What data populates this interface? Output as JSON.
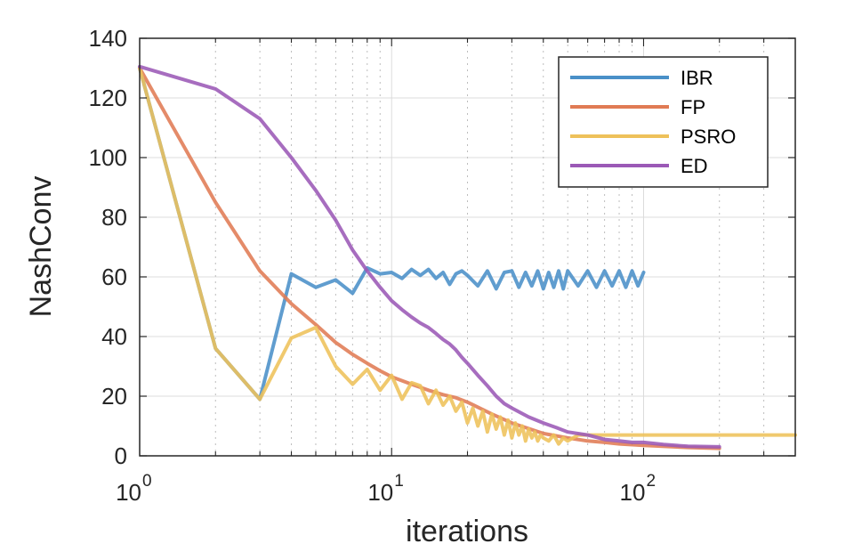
{
  "chart_data": {
    "type": "line",
    "title": "",
    "xlabel": "iterations",
    "ylabel": "NashConv",
    "xscale": "log",
    "xlim": [
      1,
      400
    ],
    "ylim": [
      0,
      140
    ],
    "grid": true,
    "legend_position": "top-right",
    "x_ticks": [
      {
        "value": 1,
        "base": "10",
        "exp": "0"
      },
      {
        "value": 10,
        "base": "10",
        "exp": "1"
      },
      {
        "value": 100,
        "base": "10",
        "exp": "2"
      }
    ],
    "y_ticks": [
      {
        "value": 0,
        "label": "0"
      },
      {
        "value": 20,
        "label": "20"
      },
      {
        "value": 40,
        "label": "40"
      },
      {
        "value": 60,
        "label": "60"
      },
      {
        "value": 80,
        "label": "80"
      },
      {
        "value": 100,
        "label": "100"
      },
      {
        "value": 120,
        "label": "120"
      },
      {
        "value": 140,
        "label": "140"
      }
    ],
    "series": [
      {
        "name": "IBR",
        "color": "#4a90c8",
        "x": [
          1,
          2,
          3,
          4,
          5,
          6,
          7,
          8,
          9,
          10,
          11,
          12,
          13,
          14,
          15,
          16,
          17,
          18,
          19,
          20,
          22,
          24,
          26,
          28,
          30,
          32,
          34,
          36,
          38,
          40,
          42,
          44,
          46,
          48,
          50,
          55,
          60,
          65,
          70,
          75,
          80,
          85,
          90,
          95,
          100
        ],
        "y": [
          130,
          36,
          19,
          61,
          56.5,
          59,
          54.5,
          63,
          61,
          61.5,
          59.5,
          62.5,
          60.5,
          62.5,
          59.5,
          61.5,
          57.5,
          61,
          62,
          60.5,
          57,
          62,
          56,
          61.5,
          62,
          56.5,
          61.5,
          57,
          62,
          56,
          61.5,
          56.5,
          62,
          56,
          62,
          57,
          62,
          56.5,
          62,
          57,
          62,
          56.5,
          62,
          57,
          61.5
        ]
      },
      {
        "name": "FP",
        "color": "#e07b54",
        "x": [
          1,
          2,
          3,
          4,
          5,
          6,
          7,
          8,
          9,
          10,
          12,
          14,
          16,
          18,
          20,
          25,
          30,
          40,
          50,
          60,
          70,
          80,
          100,
          150,
          200
        ],
        "y": [
          130,
          85,
          62,
          51,
          44,
          38,
          34,
          31,
          28.5,
          26.5,
          24,
          22,
          20.5,
          19.5,
          18,
          14,
          11,
          7.5,
          6,
          5,
          4.5,
          4,
          3.5,
          2.8,
          2.5
        ]
      },
      {
        "name": "PSRO",
        "color": "#eec15a",
        "x": [
          1,
          2,
          3,
          4,
          5,
          6,
          7,
          8,
          9,
          10,
          11,
          12,
          13,
          14,
          15,
          16,
          17,
          18,
          19,
          20,
          21,
          22,
          23,
          24,
          25,
          26,
          27,
          28,
          29,
          30,
          31,
          32,
          33,
          34,
          35,
          36,
          37,
          38,
          39,
          40,
          42,
          44,
          46,
          48,
          50,
          55,
          60,
          80,
          100,
          150,
          200,
          300,
          400
        ],
        "y": [
          130,
          36,
          19,
          39.5,
          43,
          30,
          24,
          29,
          22,
          27,
          19,
          24.5,
          23.5,
          17.5,
          22,
          17,
          20,
          15,
          18,
          11,
          16,
          10,
          15,
          8,
          14,
          9,
          13,
          7,
          12,
          6,
          11,
          7,
          10,
          5,
          9,
          6,
          8,
          5,
          7,
          6,
          5,
          7,
          4,
          6,
          5,
          7,
          7,
          7,
          7,
          7,
          7,
          7,
          7
        ]
      },
      {
        "name": "ED",
        "color": "#9b59b6",
        "x": [
          1,
          2,
          3,
          4,
          5,
          6,
          7,
          8,
          9,
          10,
          11,
          12,
          13,
          14,
          15,
          16,
          17,
          18,
          19,
          20,
          22,
          24,
          26,
          28,
          30,
          35,
          40,
          45,
          50,
          60,
          70,
          80,
          90,
          100,
          120,
          150,
          200
        ],
        "y": [
          130.5,
          123,
          113,
          100,
          89,
          79,
          69,
          62,
          56.5,
          52,
          49,
          46.5,
          44.5,
          43,
          41,
          39,
          37.5,
          35.5,
          33,
          31,
          27,
          23.5,
          20,
          17.5,
          16,
          13,
          11,
          9.5,
          8,
          7,
          5.5,
          5,
          4.5,
          4.5,
          3.8,
          3.2,
          3
        ]
      }
    ]
  }
}
